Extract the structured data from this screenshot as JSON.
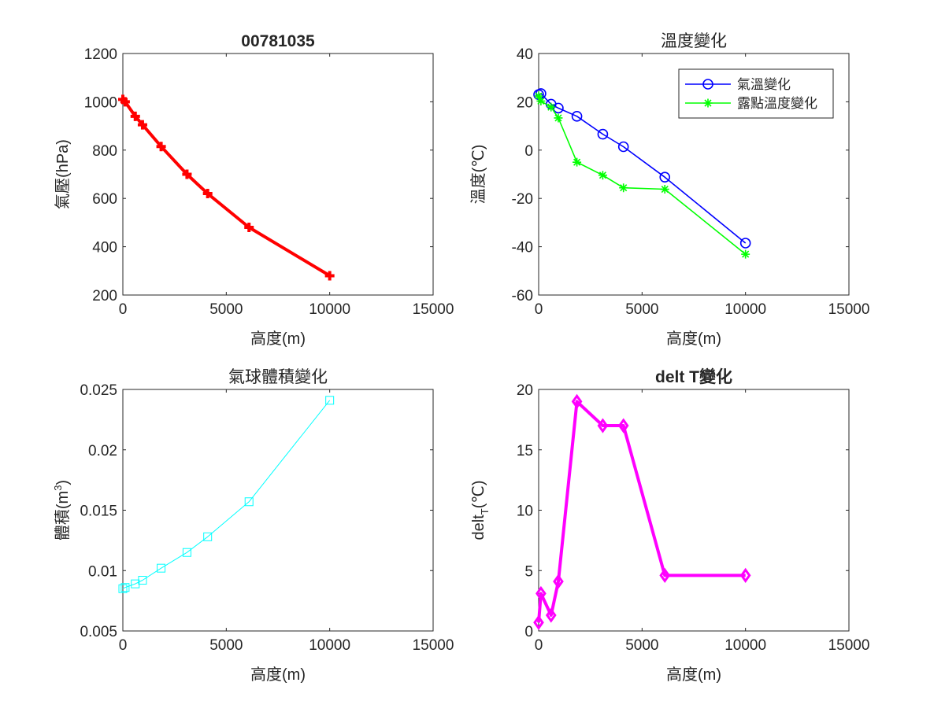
{
  "chart_data": [
    {
      "type": "line",
      "title": "00781035",
      "title_bold": true,
      "xlabel": "高度(m)",
      "ylabel": "氣壓(hPa)",
      "xlim": [
        0,
        15000
      ],
      "ylim": [
        200,
        1200
      ],
      "xticks": [
        0,
        5000,
        10000,
        15000
      ],
      "yticks": [
        200,
        400,
        600,
        800,
        1000,
        1200
      ],
      "grid": false,
      "series": [
        {
          "color": "#ff0000",
          "marker": "plus",
          "linewidth": 4,
          "x": [
            0,
            110,
            600,
            950,
            1850,
            3100,
            4100,
            6100,
            10000
          ],
          "y": [
            1010,
            1000,
            940,
            905,
            815,
            700,
            620,
            480,
            280
          ]
        }
      ]
    },
    {
      "type": "line",
      "title": "溫度變化",
      "title_bold": false,
      "xlabel": "高度(m)",
      "ylabel": "溫度(℃)",
      "xlim": [
        0,
        15000
      ],
      "ylim": [
        -60,
        40
      ],
      "xticks": [
        0,
        5000,
        10000,
        15000
      ],
      "yticks": [
        -60,
        -40,
        -20,
        0,
        20,
        40
      ],
      "grid": false,
      "legend_position": "top-right",
      "series": [
        {
          "name": "氣溫變化",
          "color": "#0000ff",
          "marker": "circle",
          "linewidth": 1.6,
          "x": [
            0,
            110,
            600,
            950,
            1850,
            3100,
            4100,
            6100,
            10000
          ],
          "y": [
            23,
            23.4,
            19,
            17.4,
            14,
            6.6,
            1.4,
            -11.2,
            -38.5
          ]
        },
        {
          "name": "露點溫度變化",
          "color": "#00ff00",
          "marker": "asterisk",
          "linewidth": 1.6,
          "x": [
            0,
            110,
            600,
            950,
            1850,
            3100,
            4100,
            6100,
            10000
          ],
          "y": [
            22.4,
            20.3,
            17.8,
            13.3,
            -5,
            -10.4,
            -15.6,
            -16.2,
            -43.1
          ]
        }
      ]
    },
    {
      "type": "line",
      "title": "氣球體積變化",
      "title_bold": false,
      "xlabel": "高度(m)",
      "ylabel": "體積(m",
      "ylabel_superscript": "3",
      "ylabel_suffix": ")",
      "xlim": [
        0,
        15000
      ],
      "ylim": [
        0.005,
        0.025
      ],
      "xticks": [
        0,
        5000,
        10000,
        15000
      ],
      "yticks": [
        0.005,
        0.01,
        0.015,
        0.02,
        0.025
      ],
      "ytick_labels": [
        "0.005",
        "0.01",
        "0.015",
        "0.02",
        "0.025"
      ],
      "grid": false,
      "series": [
        {
          "color": "#00ffff",
          "marker": "square",
          "linewidth": 1,
          "x": [
            0,
            110,
            600,
            950,
            1850,
            3100,
            4100,
            6100,
            10000
          ],
          "y": [
            0.0085,
            0.0086,
            0.0089,
            0.0092,
            0.0102,
            0.0115,
            0.0128,
            0.0157,
            0.0241
          ]
        }
      ]
    },
    {
      "type": "line",
      "title": "delt T變化",
      "title_bold": true,
      "xlabel": "高度(m)",
      "ylabel": "delt",
      "ylabel_subscript": "T",
      "ylabel_suffix": "(℃)",
      "xlim": [
        0,
        15000
      ],
      "ylim": [
        0,
        20
      ],
      "xticks": [
        0,
        5000,
        10000,
        15000
      ],
      "yticks": [
        0,
        5,
        10,
        15,
        20
      ],
      "grid": false,
      "series": [
        {
          "color": "#ff00ff",
          "marker": "diamond",
          "linewidth": 4,
          "x": [
            0,
            110,
            600,
            950,
            1850,
            3100,
            4100,
            6100,
            10000
          ],
          "y": [
            0.7,
            3.1,
            1.3,
            4.1,
            19,
            17,
            17,
            4.6,
            4.6
          ]
        }
      ]
    }
  ]
}
